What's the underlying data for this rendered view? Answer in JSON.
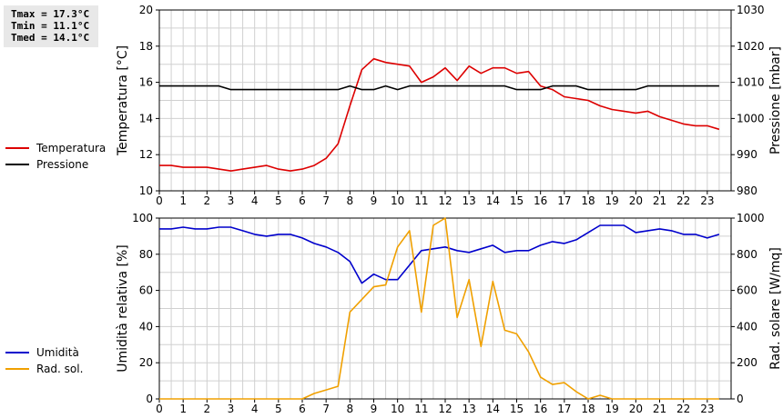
{
  "stats": {
    "tmax": "Tmax = 17.3°C",
    "tmin": "Tmin = 11.1°C",
    "tmed": "Tmed = 14.1°C"
  },
  "colors": {
    "temperature": "#dd0000",
    "pressure": "#000000",
    "humidity": "#0000cc",
    "solar": "#f0a000",
    "grid": "#d0d0d0"
  },
  "chart_data": [
    {
      "type": "line",
      "ylabel": "Temperatura [°C]",
      "ylabel_right": "Pressione [mbar]",
      "ylim": [
        10,
        20
      ],
      "ylim_right": [
        980,
        1030
      ],
      "yticks": [
        10,
        12,
        14,
        16,
        18,
        20
      ],
      "yticks_right": [
        980,
        990,
        1000,
        1010,
        1020,
        1030
      ],
      "xlim": [
        0,
        24
      ],
      "xticks": [
        0,
        1,
        2,
        3,
        4,
        5,
        6,
        7,
        8,
        9,
        10,
        11,
        12,
        13,
        14,
        15,
        16,
        17,
        18,
        19,
        20,
        21,
        22,
        23
      ],
      "grid": true,
      "legend_position": "left",
      "series": [
        {
          "name": "Temperatura",
          "axis": "left",
          "x": [
            0,
            0.5,
            1,
            1.5,
            2,
            2.5,
            3,
            3.5,
            4,
            4.5,
            5,
            5.5,
            6,
            6.5,
            7,
            7.5,
            8,
            8.5,
            9,
            9.5,
            10,
            10.5,
            11,
            11.5,
            12,
            12.5,
            13,
            13.5,
            14,
            14.5,
            15,
            15.5,
            16,
            16.5,
            17,
            17.5,
            18,
            18.5,
            19,
            19.5,
            20,
            20.5,
            21,
            21.5,
            22,
            22.5,
            23,
            23.5
          ],
          "values": [
            11.4,
            11.4,
            11.3,
            11.3,
            11.3,
            11.2,
            11.1,
            11.2,
            11.3,
            11.4,
            11.2,
            11.1,
            11.2,
            11.4,
            11.8,
            12.6,
            14.7,
            16.7,
            17.3,
            17.1,
            17.0,
            16.9,
            16.0,
            16.3,
            16.8,
            16.1,
            16.9,
            16.5,
            16.8,
            16.8,
            16.5,
            16.6,
            15.8,
            15.6,
            15.2,
            15.1,
            15.0,
            14.7,
            14.5,
            14.4,
            14.3,
            14.4,
            14.1,
            13.9,
            13.7,
            13.6,
            13.6,
            13.4
          ]
        },
        {
          "name": "Pressione",
          "axis": "right",
          "x": [
            0,
            0.5,
            1,
            1.5,
            2,
            2.5,
            3,
            3.5,
            4,
            4.5,
            5,
            5.5,
            6,
            6.5,
            7,
            7.5,
            8,
            8.5,
            9,
            9.5,
            10,
            10.5,
            11,
            11.5,
            12,
            12.5,
            13,
            13.5,
            14,
            14.5,
            15,
            15.5,
            16,
            16.5,
            17,
            17.5,
            18,
            18.5,
            19,
            19.5,
            20,
            20.5,
            21,
            21.5,
            22,
            22.5,
            23,
            23.5
          ],
          "values": [
            1009,
            1009,
            1009,
            1009,
            1009,
            1009,
            1008,
            1008,
            1008,
            1008,
            1008,
            1008,
            1008,
            1008,
            1008,
            1008,
            1009,
            1008,
            1008,
            1009,
            1008,
            1009,
            1009,
            1009,
            1009,
            1009,
            1009,
            1009,
            1009,
            1009,
            1008,
            1008,
            1008,
            1009,
            1009,
            1009,
            1008,
            1008,
            1008,
            1008,
            1008,
            1009,
            1009,
            1009,
            1009,
            1009,
            1009,
            1009
          ]
        }
      ]
    },
    {
      "type": "line",
      "ylabel": "Umidità relativa [%]",
      "ylabel_right": "Rad. solare [W/mq]",
      "ylim": [
        0,
        100
      ],
      "ylim_right": [
        0,
        1000
      ],
      "yticks": [
        0,
        20,
        40,
        60,
        80,
        100
      ],
      "yticks_right": [
        0,
        200,
        400,
        600,
        800,
        1000
      ],
      "xlim": [
        0,
        24
      ],
      "xticks": [
        0,
        1,
        2,
        3,
        4,
        5,
        6,
        7,
        8,
        9,
        10,
        11,
        12,
        13,
        14,
        15,
        16,
        17,
        18,
        19,
        20,
        21,
        22,
        23
      ],
      "grid": true,
      "legend_position": "left",
      "series": [
        {
          "name": "Umidità",
          "axis": "left",
          "x": [
            0,
            0.5,
            1,
            1.5,
            2,
            2.5,
            3,
            3.5,
            4,
            4.5,
            5,
            5.5,
            6,
            6.5,
            7,
            7.5,
            8,
            8.5,
            9,
            9.5,
            10,
            10.5,
            11,
            11.5,
            12,
            12.5,
            13,
            13.5,
            14,
            14.5,
            15,
            15.5,
            16,
            16.5,
            17,
            17.5,
            18,
            18.5,
            19,
            19.5,
            20,
            20.5,
            21,
            21.5,
            22,
            22.5,
            23,
            23.5
          ],
          "values": [
            94,
            94,
            95,
            94,
            94,
            95,
            95,
            93,
            91,
            90,
            91,
            91,
            89,
            86,
            84,
            81,
            76,
            64,
            69,
            66,
            66,
            74,
            82,
            83,
            84,
            82,
            81,
            83,
            85,
            81,
            82,
            82,
            85,
            87,
            86,
            88,
            92,
            96,
            96,
            96,
            92,
            93,
            94,
            93,
            91,
            91,
            89,
            91
          ]
        },
        {
          "name": "Rad. sol.",
          "axis": "right",
          "x": [
            0,
            0.5,
            1,
            1.5,
            2,
            2.5,
            3,
            3.5,
            4,
            4.5,
            5,
            5.5,
            6,
            6.5,
            7,
            7.5,
            8,
            8.5,
            9,
            9.5,
            10,
            10.5,
            11,
            11.5,
            12,
            12.5,
            13,
            13.5,
            14,
            14.5,
            15,
            15.5,
            16,
            16.5,
            17,
            17.5,
            18,
            18.5,
            19,
            19.5,
            20,
            20.5,
            21,
            21.5,
            22,
            22.5,
            23,
            23.5
          ],
          "values": [
            0,
            0,
            0,
            0,
            0,
            0,
            0,
            0,
            0,
            0,
            0,
            0,
            0,
            30,
            50,
            70,
            480,
            550,
            620,
            630,
            840,
            930,
            480,
            960,
            1000,
            450,
            660,
            290,
            650,
            380,
            360,
            260,
            120,
            80,
            90,
            40,
            0,
            20,
            0,
            0,
            0,
            0,
            0,
            0,
            0,
            0,
            0,
            0
          ]
        }
      ]
    }
  ]
}
